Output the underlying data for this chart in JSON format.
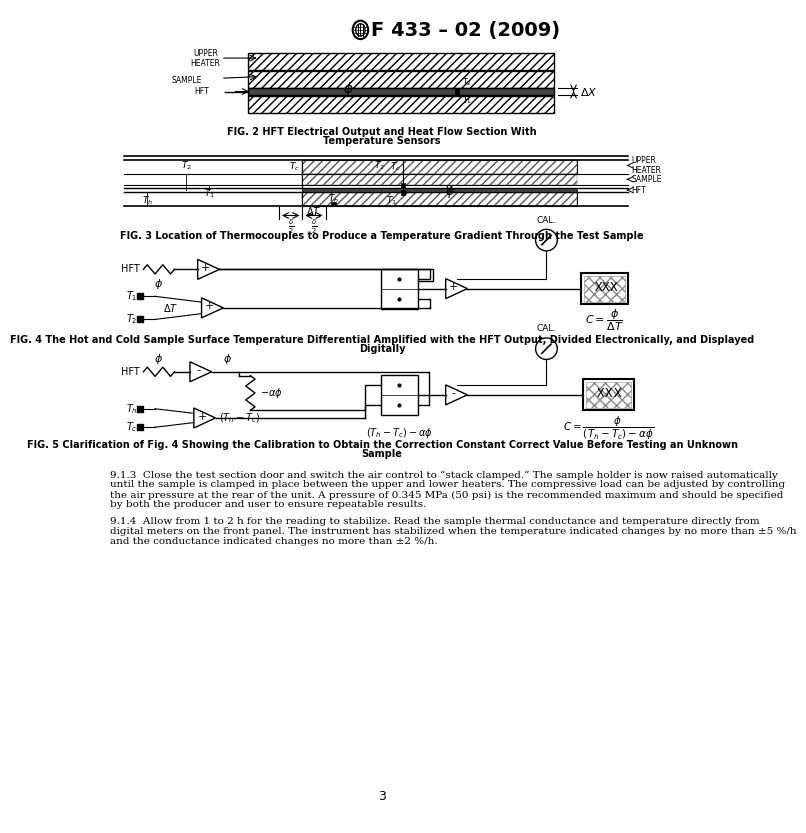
{
  "title": "F 433 – 02 (2009)",
  "page_number": "3",
  "fig2_caption_line1": "FIG. 2 HFT Electrical Output and Heat Flow Section With",
  "fig2_caption_line2": "Temperature Sensors",
  "fig3_caption": "FIG. 3 Location of Thermocouples to Produce a Temperature Gradient Through the Test Sample",
  "fig4_caption_line1": "FIG. 4 The Hot and Cold Sample Surface Temperature Differential Amplified with the HFT Output, Divided Electronically, and Displayed",
  "fig4_caption_line2": "Digitally",
  "fig5_caption_line1": "FIG. 5 Clarification of Fig. 4 Showing the Calibration to Obtain the Correction Constant Correct Value Before Testing an Unknown",
  "fig5_caption_line2": "Sample",
  "para913_line1": "9.1.3  Close the test section door and switch the air control to “stack clamped.” The sample holder is now raised automatically",
  "para913_line2": "until the sample is clamped in place between the upper and lower heaters. The compressive load can be adjusted by controlling",
  "para913_line3": "the air pressure at the rear of the unit. A pressure of 0.345 MPa (50 psi) is the recommended maximum and should be specified",
  "para913_line4": "by both the producer and user to ensure repeatable results.",
  "para914_line1": "9.1.4  Allow from 1 to 2 h for the reading to stabilize. Read the sample thermal conductance and temperature directly from",
  "para914_line2": "digital meters on the front panel. The instrument has stabilized when the temperature indicated changes by no more than ±5 %/h",
  "para914_line3": "and the conductance indicated changes no more than ±2 %/h.",
  "background": "#ffffff",
  "text_color": "#000000",
  "line_color": "#000000"
}
